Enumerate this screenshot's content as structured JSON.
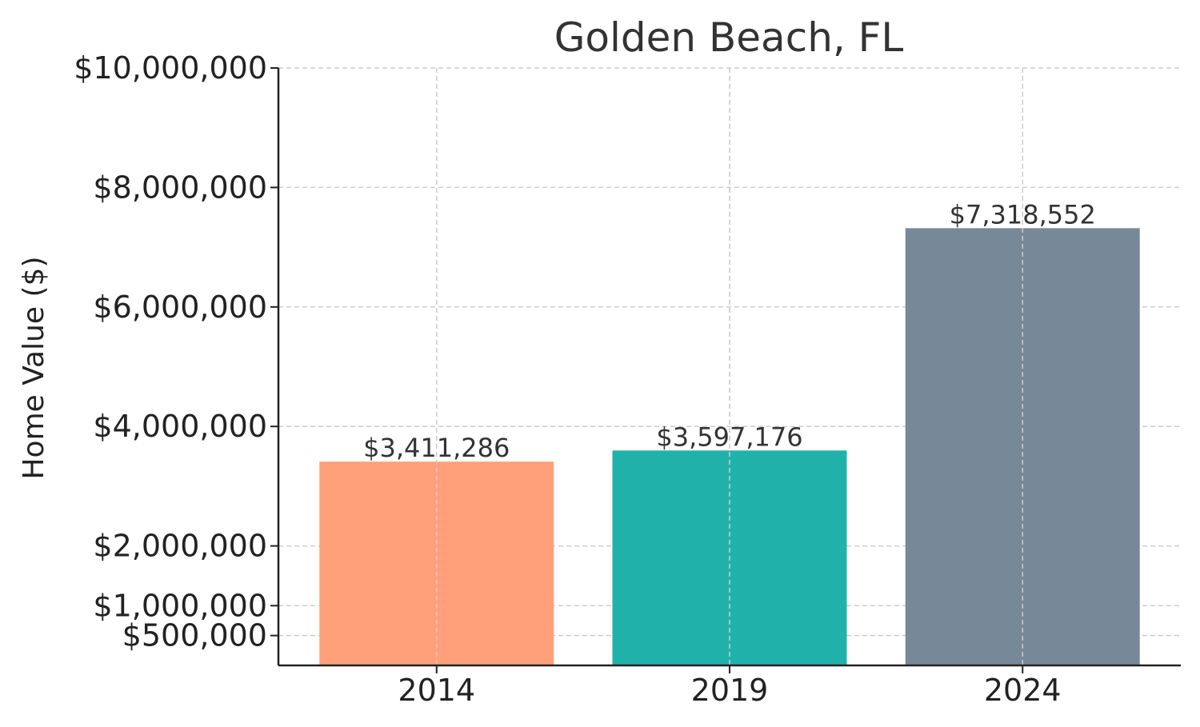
{
  "chart_data": {
    "type": "bar",
    "title": "Golden Beach, FL",
    "xlabel": "",
    "ylabel": "Home Value ($)",
    "categories": [
      "2014",
      "2019",
      "2024"
    ],
    "values": [
      3411286,
      3597176,
      7318552
    ],
    "value_labels": [
      "$3,411,286",
      "$3,597,176",
      "$7,318,552"
    ],
    "colors": [
      "#FFA07A",
      "#20B2AA",
      "#778899"
    ],
    "ylim": [
      0,
      10000000
    ],
    "yticks": [
      500000,
      1000000,
      2000000,
      4000000,
      6000000,
      8000000,
      10000000
    ],
    "ytick_labels": [
      "$500,000",
      "$1,000,000",
      "$2,000,000",
      "$4,000,000",
      "$6,000,000",
      "$8,000,000",
      "$10,000,000"
    ],
    "grid": true
  }
}
